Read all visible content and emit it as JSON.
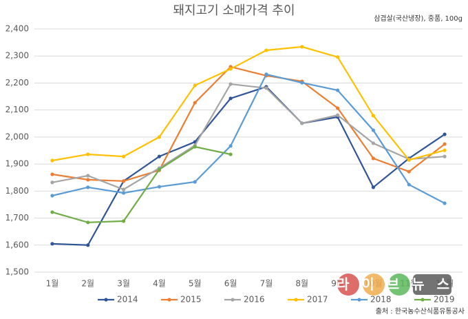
{
  "chart_data": {
    "type": "line",
    "title": "돼지고기 소매가격 추이",
    "subtitle": "삼겹살(국산냉장), 중품, 100g",
    "source": "출처 : 한국농수산식품유통공사",
    "watermark": "라이브뉴스",
    "categories": [
      "1월",
      "2월",
      "3월",
      "4월",
      "5월",
      "6월",
      "7월",
      "8월",
      "9월",
      "10월",
      "11월",
      "12월"
    ],
    "series": [
      {
        "name": "2014",
        "color": "#2f5597",
        "values": [
          1605,
          1600,
          1837,
          1928,
          1982,
          2143,
          2186,
          2051,
          2074,
          1814,
          1921,
          2010
        ]
      },
      {
        "name": "2015",
        "color": "#ed7d31",
        "values": [
          1862,
          1842,
          1837,
          1877,
          2127,
          2260,
          2227,
          2206,
          2107,
          1921,
          1872,
          1974
        ]
      },
      {
        "name": "2016",
        "color": "#a5a5a5",
        "values": [
          1832,
          1857,
          1806,
          1885,
          1969,
          2196,
          2181,
          2051,
          2081,
          1977,
          1918,
          1928
        ]
      },
      {
        "name": "2017",
        "color": "#ffc000",
        "values": [
          1913,
          1936,
          1928,
          2000,
          2191,
          2252,
          2321,
          2334,
          2296,
          2079,
          1915,
          1951
        ]
      },
      {
        "name": "2018",
        "color": "#5b9bd5",
        "values": [
          1783,
          1814,
          1793,
          1816,
          1834,
          1967,
          2232,
          2201,
          2173,
          2025,
          1824,
          1755
        ]
      },
      {
        "name": "2019",
        "color": "#70ad47",
        "values": [
          1722,
          1684,
          1689,
          1880,
          1964,
          1936,
          null,
          null,
          null,
          null,
          null,
          null
        ]
      }
    ],
    "ylim": [
      1500,
      2400
    ],
    "yticks": [
      {
        "value": 1500,
        "label": "1,500"
      },
      {
        "value": 1600,
        "label": "1,600"
      },
      {
        "value": 1700,
        "label": "1,700"
      },
      {
        "value": 1800,
        "label": "1,800"
      },
      {
        "value": 1900,
        "label": "1,900"
      },
      {
        "value": 2000,
        "label": "2,000"
      },
      {
        "value": 2100,
        "label": "2,100"
      },
      {
        "value": 2200,
        "label": "2,200"
      },
      {
        "value": 2300,
        "label": "2,300"
      },
      {
        "value": 2400,
        "label": "2,400"
      }
    ],
    "grid": true,
    "legend": "bottom"
  }
}
